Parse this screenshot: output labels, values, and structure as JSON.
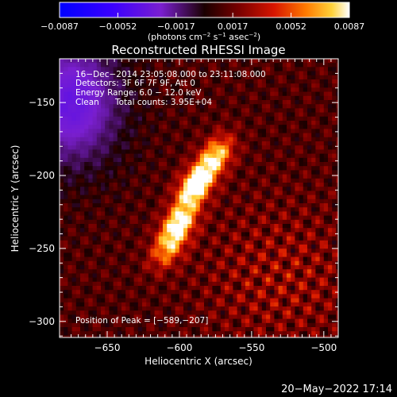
{
  "chart_data": {
    "type": "heatmap",
    "title": "Reconstructed RHESSI Image",
    "xlabel": "Heliocentric X (arcsec)",
    "ylabel": "Heliocentric Y (arcsec)",
    "xlim": [
      -683,
      -490
    ],
    "ylim": [
      -311,
      -120
    ],
    "xticks": [
      -650,
      -600,
      -550,
      -500
    ],
    "yticks": [
      -150,
      -200,
      -250,
      -300
    ],
    "xtick_labels": [
      "−650",
      "−600",
      "−550",
      "−500"
    ],
    "ytick_labels": [
      "−150",
      "−200",
      "−250",
      "−300"
    ],
    "colorbar": {
      "min": -0.0087,
      "max": 0.0087,
      "ticks": [
        -0.0087,
        -0.0052,
        -0.0017,
        0.0017,
        0.0052,
        0.0087
      ],
      "tick_labels": [
        "−0.0087",
        "−0.0052",
        "−0.0017",
        "0.0017",
        "0.0052",
        "0.0087"
      ],
      "unit_base": "(photons cm",
      "unit_exp1": "−2",
      "unit_mid": " s",
      "unit_exp2": "−1",
      "unit_mid2": " asec",
      "unit_exp3": "−2",
      "unit_end": ")"
    },
    "annotations": {
      "time_range": "16−Dec−2014 23:05:08.000 to 23:11:08.000",
      "detectors": "Detectors: 3F 6F 7F 9F, Att 0",
      "energy": "Energy Range: 6.0 − 12.0 keV",
      "clean": "Clean",
      "counts": "Total counts: 3.95E+04",
      "peak": "Position of Peak = [−589,−207]"
    },
    "peak_position": [
      -589,
      -207
    ],
    "sources": [
      {
        "x": -589,
        "y": -207,
        "value": 0.0087
      },
      {
        "x": -600,
        "y": -232,
        "value": 0.0072
      },
      {
        "x": -575,
        "y": -187,
        "value": 0.0068
      },
      {
        "x": -608,
        "y": -250,
        "value": 0.005
      }
    ],
    "footer_timestamp": "20−May−2022 17:14"
  }
}
